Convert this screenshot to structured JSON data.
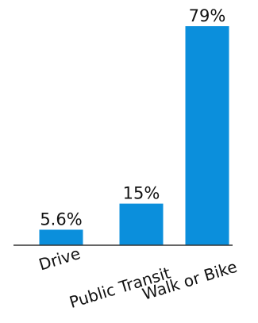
{
  "chart_data": {
    "type": "bar",
    "title": "",
    "xlabel": "",
    "ylabel": "",
    "categories": [
      "Drive",
      "Public Transit",
      "Walk or Bike"
    ],
    "values": [
      5.6,
      15,
      79
    ],
    "value_labels": [
      "5.6%",
      "15%",
      "79%"
    ],
    "ylim": [
      0,
      79
    ],
    "grid": false,
    "legend": "none",
    "bar_color": "#0B8FDC",
    "axis_color": "#333333"
  }
}
